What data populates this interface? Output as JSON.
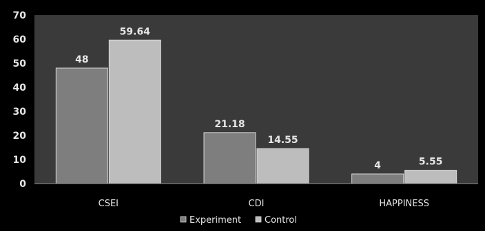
{
  "chart_data": {
    "type": "bar",
    "categories": [
      "CSEI",
      "CDI",
      "HAPPINESS"
    ],
    "series": [
      {
        "name": "Experiment",
        "values": [
          48,
          21.18,
          4
        ],
        "color": "#7e7e7e"
      },
      {
        "name": "Control",
        "values": [
          59.64,
          14.55,
          5.55
        ],
        "color": "#bdbdbd"
      }
    ],
    "value_labels": {
      "Experiment": [
        "48",
        "21.18",
        "4"
      ],
      "Control": [
        "59.64",
        "14.55",
        "5.55"
      ]
    },
    "yticks": [
      "0",
      "10",
      "20",
      "30",
      "40",
      "50",
      "60",
      "70"
    ],
    "ylim": [
      0,
      70
    ],
    "grid": false,
    "legend_position": "bottom",
    "plot_background": "#3a3a3a",
    "title": "",
    "xlabel": "",
    "ylabel": ""
  }
}
